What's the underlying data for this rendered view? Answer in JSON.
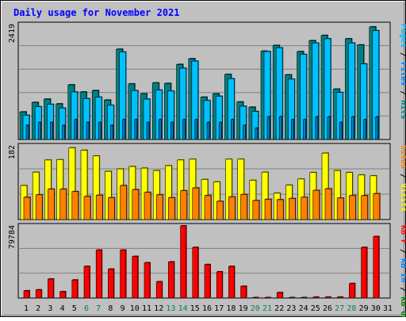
{
  "title": "Daily usage for November 2021",
  "colors": {
    "background": "#c0c0c0",
    "title": "#0000ff",
    "hits": "#008080",
    "hits_face": "#00c0c0",
    "files": "#00c0ff",
    "files_face": "#0080ff",
    "pages": "#00ffff",
    "pages_face": "#0080c0",
    "visits": "#ffff00",
    "sites": "#ff8000",
    "kbin": "#0080ff",
    "kbout": "#008000",
    "kbf": "#ff0000",
    "weekend_label": "#00805c",
    "weekday_label": "#000000"
  },
  "chart_data": [
    {
      "type": "bar",
      "panel": "hits",
      "max_label": "2419",
      "ylim": [
        0,
        2419
      ],
      "legend": [
        {
          "label": "Pages",
          "color": "#00c0ff"
        },
        {
          "label": "Files",
          "color": "#0080ff"
        },
        {
          "label": "Hits",
          "color": "#008080"
        }
      ],
      "categories": [
        "1",
        "2",
        "3",
        "4",
        "5",
        "6",
        "7",
        "8",
        "9",
        "10",
        "11",
        "12",
        "13",
        "14",
        "15",
        "16",
        "17",
        "18",
        "19",
        "20",
        "21",
        "22",
        "23",
        "24",
        "25",
        "26",
        "27",
        "28",
        "29",
        "30",
        "31"
      ],
      "series": [
        {
          "name": "Hits",
          "values": [
            580,
            780,
            850,
            750,
            1150,
            1000,
            1030,
            830,
            1900,
            1170,
            960,
            1190,
            1180,
            1580,
            1700,
            890,
            960,
            1370,
            790,
            680,
            1860,
            1980,
            1360,
            1850,
            2080,
            2190,
            1060,
            2120,
            1990,
            2370,
            0
          ]
        },
        {
          "name": "Files",
          "values": [
            510,
            690,
            740,
            660,
            1000,
            860,
            890,
            720,
            1840,
            1030,
            850,
            1040,
            1020,
            1500,
            1650,
            820,
            910,
            1280,
            700,
            590,
            1850,
            1930,
            1270,
            1790,
            2030,
            2120,
            990,
            2030,
            1590,
            2290,
            0
          ]
        },
        {
          "name": "Pages",
          "values": [
            50,
            60,
            60,
            50,
            70,
            60,
            60,
            50,
            70,
            70,
            60,
            70,
            60,
            70,
            70,
            60,
            60,
            70,
            50,
            40,
            80,
            80,
            70,
            70,
            80,
            80,
            60,
            80,
            70,
            80,
            0
          ]
        }
      ]
    },
    {
      "type": "bar",
      "panel": "visits",
      "max_label": "182",
      "ylim": [
        0,
        182
      ],
      "legend": [
        {
          "label": "Sites",
          "color": "#ff8000"
        },
        {
          "label": "Visits",
          "color": "#ffff00"
        }
      ],
      "categories": [
        "1",
        "2",
        "3",
        "4",
        "5",
        "6",
        "7",
        "8",
        "9",
        "10",
        "11",
        "12",
        "13",
        "14",
        "15",
        "16",
        "17",
        "18",
        "19",
        "20",
        "21",
        "22",
        "23",
        "24",
        "25",
        "26",
        "27",
        "28",
        "29",
        "30",
        "31"
      ],
      "series": [
        {
          "name": "Visits",
          "values": [
            84,
            117,
            147,
            148,
            177,
            171,
            157,
            119,
            125,
            131,
            127,
            121,
            133,
            147,
            149,
            99,
            93,
            149,
            149,
            97,
            117,
            65,
            85,
            100,
            116,
            164,
            121,
            116,
            110,
            108,
            0
          ]
        },
        {
          "name": "Sites",
          "values": [
            55,
            61,
            75,
            75,
            69,
            57,
            60,
            54,
            84,
            74,
            67,
            61,
            54,
            71,
            78,
            59,
            45,
            56,
            62,
            47,
            50,
            49,
            52,
            55,
            72,
            76,
            53,
            59,
            59,
            64,
            0
          ]
        }
      ]
    },
    {
      "type": "bar",
      "panel": "kbytes",
      "max_label": "79784",
      "ylim": [
        0,
        79784
      ],
      "legend": [
        {
          "label": "KB F",
          "color": "#ff0000"
        },
        {
          "label": "KB In",
          "color": "#0080ff"
        },
        {
          "label": "KB Out",
          "color": "#008000"
        }
      ],
      "categories": [
        "1",
        "2",
        "3",
        "4",
        "5",
        "6",
        "7",
        "8",
        "9",
        "10",
        "11",
        "12",
        "13",
        "14",
        "15",
        "16",
        "17",
        "18",
        "19",
        "20",
        "21",
        "22",
        "23",
        "24",
        "25",
        "26",
        "27",
        "28",
        "29",
        "30",
        "31"
      ],
      "series": [
        {
          "name": "KB F",
          "values": [
            8000,
            9000,
            21000,
            7000,
            20000,
            35000,
            53000,
            32000,
            53000,
            46000,
            39000,
            18000,
            40000,
            79784,
            56000,
            37000,
            29000,
            35000,
            13000,
            500,
            500,
            6000,
            500,
            500,
            1000,
            1000,
            1000,
            16000,
            56000,
            68000,
            0
          ]
        }
      ]
    }
  ],
  "days": [
    "1",
    "2",
    "3",
    "4",
    "5",
    "6",
    "7",
    "8",
    "9",
    "10",
    "11",
    "12",
    "13",
    "14",
    "15",
    "16",
    "17",
    "18",
    "19",
    "20",
    "21",
    "22",
    "23",
    "24",
    "25",
    "26",
    "27",
    "28",
    "29",
    "30",
    "31"
  ],
  "weekend_days": [
    6,
    7,
    13,
    14,
    20,
    21,
    27,
    28
  ]
}
